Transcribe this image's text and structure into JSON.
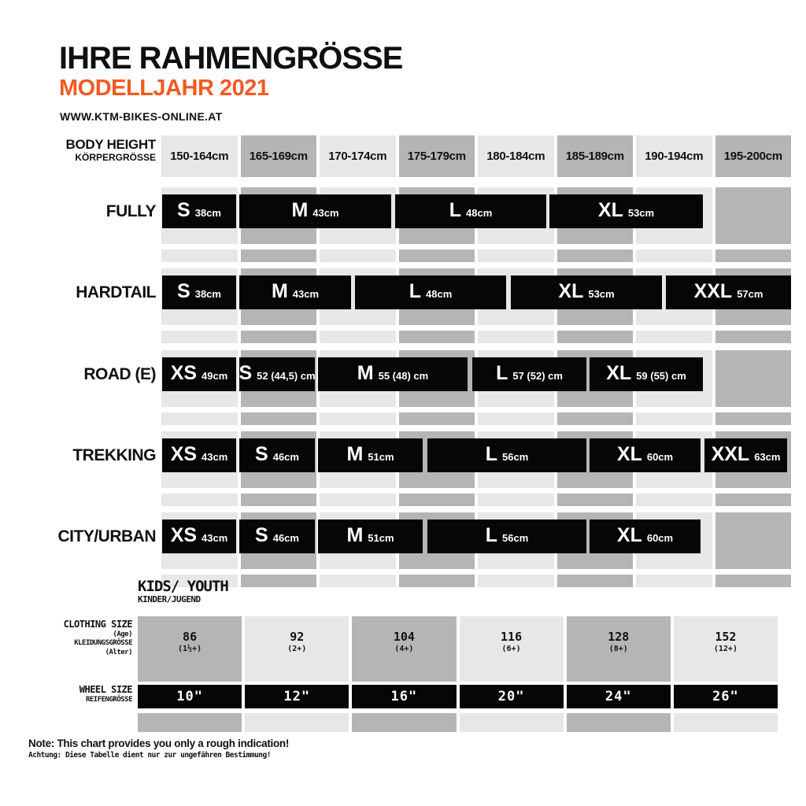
{
  "header": {
    "title": "IHRE RAHMENGRÖSSE",
    "subtitle": "MODELLJAHR 2021",
    "website": "WWW.KTM-BIKES-ONLINE.AT"
  },
  "colors": {
    "accent": "#f15a24",
    "column_light": "#e7e7e7",
    "column_dark": "#b5b5b5",
    "bar": "#060606",
    "bar_text": "#ffffff"
  },
  "body_height": {
    "label_en": "BODY HEIGHT",
    "label_de": "KÖRPERGRÖSSE"
  },
  "chart_data": {
    "type": "table",
    "title": "IHRE RAHMENGRÖSSE",
    "subtitle": "MODELLJAHR 2021",
    "x_axis_label": "BODY HEIGHT / KÖRPERGRÖSSE",
    "x_categories": [
      "150-164cm",
      "165-169cm",
      "170-174cm",
      "175-179cm",
      "180-184cm",
      "185-189cm",
      "190-194cm",
      "195-200cm"
    ],
    "legend_position": "none",
    "grid": "alternating-gray-columns",
    "rows": [
      {
        "category": "FULLY",
        "segments": [
          {
            "size": "S",
            "frame": "38cm",
            "span": [
              0.01,
              0.95
            ]
          },
          {
            "size": "M",
            "frame": "43cm",
            "span": [
              0.99,
              2.92
            ]
          },
          {
            "size": "L",
            "frame": "48cm",
            "span": [
              2.97,
              4.89
            ]
          },
          {
            "size": "XL",
            "frame": "53cm",
            "span": [
              4.93,
              6.88
            ]
          }
        ]
      },
      {
        "category": "HARDTAIL",
        "segments": [
          {
            "size": "S",
            "frame": "38cm",
            "span": [
              0.01,
              0.95
            ]
          },
          {
            "size": "M",
            "frame": "43cm",
            "span": [
              0.99,
              2.41
            ]
          },
          {
            "size": "L",
            "frame": "48cm",
            "span": [
              2.46,
              4.38
            ]
          },
          {
            "size": "XL",
            "frame": "53cm",
            "span": [
              4.44,
              6.36
            ]
          },
          {
            "size": "XXL",
            "frame": "57cm",
            "span": [
              6.41,
              8.0
            ]
          }
        ]
      },
      {
        "category": "ROAD (E)",
        "segments": [
          {
            "size": "XS",
            "frame": "49cm",
            "span": [
              0.01,
              0.95
            ]
          },
          {
            "size": "S",
            "frame": "52 (44,5) cm",
            "span": [
              0.99,
              1.95
            ]
          },
          {
            "size": "M",
            "frame": "55 (48) cm",
            "span": [
              1.99,
              3.89
            ]
          },
          {
            "size": "L",
            "frame": "57 (52) cm",
            "span": [
              3.95,
              5.4
            ]
          },
          {
            "size": "XL",
            "frame": "59 (55) cm",
            "span": [
              5.44,
              6.88
            ]
          }
        ]
      },
      {
        "category": "TREKKING",
        "segments": [
          {
            "size": "XS",
            "frame": "43cm",
            "span": [
              0.01,
              0.95
            ]
          },
          {
            "size": "S",
            "frame": "46cm",
            "span": [
              0.99,
              1.95
            ]
          },
          {
            "size": "M",
            "frame": "51cm",
            "span": [
              1.99,
              3.32
            ]
          },
          {
            "size": "L",
            "frame": "56cm",
            "span": [
              3.38,
              5.4
            ]
          },
          {
            "size": "XL",
            "frame": "60cm",
            "span": [
              5.44,
              6.85
            ]
          },
          {
            "size": "XXL",
            "frame": "63cm",
            "span": [
              6.9,
              7.95
            ]
          }
        ]
      },
      {
        "category": "CITY/URBAN",
        "segments": [
          {
            "size": "XS",
            "frame": "43cm",
            "span": [
              0.01,
              0.95
            ]
          },
          {
            "size": "S",
            "frame": "46cm",
            "span": [
              0.99,
              1.95
            ]
          },
          {
            "size": "M",
            "frame": "51cm",
            "span": [
              1.99,
              3.32
            ]
          },
          {
            "size": "L",
            "frame": "56cm",
            "span": [
              3.38,
              5.4
            ]
          },
          {
            "size": "XL",
            "frame": "60cm",
            "span": [
              5.44,
              6.85
            ]
          }
        ]
      }
    ],
    "kids_table": {
      "clothing_sizes": [
        "86",
        "92",
        "104",
        "116",
        "128",
        "152"
      ],
      "ages": [
        "(1½+)",
        "(2+)",
        "(4+)",
        "(6+)",
        "(8+)",
        "(12+)"
      ],
      "wheel_sizes": [
        "10\"",
        "12\"",
        "16\"",
        "20\"",
        "24\"",
        "26\""
      ]
    }
  },
  "kids": {
    "title_en": "KIDS/ YOUTH",
    "title_de": "KINDER/JUGEND",
    "clothing_label": {
      "en": "CLOTHING SIZE",
      "age": "(Age)",
      "de": "KLEIDUNGSGRÖSSE",
      "alter": "(Alter)"
    },
    "wheel_label": {
      "en": "WHEEL SIZE",
      "de": "REIFENGRÖSSE"
    }
  },
  "note": {
    "line1": "Note: This chart provides you only a rough indication!",
    "line2": "Achtung: Diese Tabelle dient nur zur ungefähren Bestimmung!"
  }
}
